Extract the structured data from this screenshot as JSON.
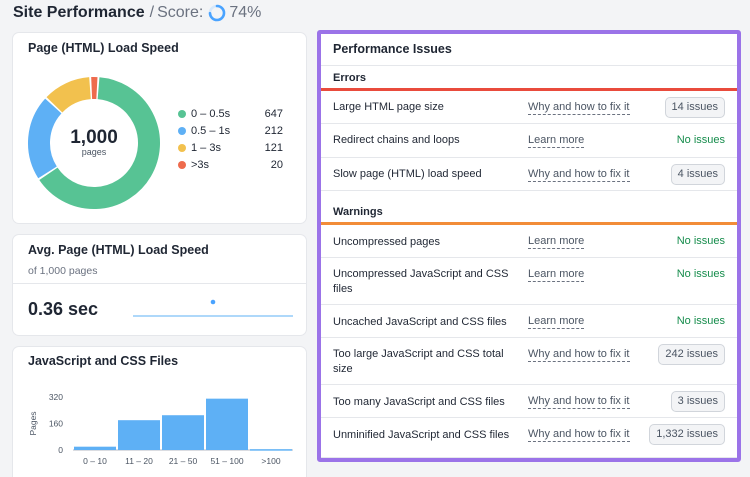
{
  "header": {
    "title": "Site Performance",
    "separator": "/",
    "score_label": "Score:",
    "score_value": "74%",
    "score_fraction": 0.74,
    "score_color": "#4aa3ff"
  },
  "load_speed_card": {
    "title": "Page (HTML) Load Speed",
    "center_value": "1,000",
    "center_label": "pages",
    "legend": [
      {
        "label": "0 – 0.5s",
        "count": "647",
        "value": 647,
        "color": "#57c394"
      },
      {
        "label": "0.5 – 1s",
        "count": "212",
        "value": 212,
        "color": "#5eb0f5"
      },
      {
        "label": "1 – 3s",
        "count": "121",
        "value": 121,
        "color": "#f2c14e"
      },
      {
        "label": ">3s",
        "count": "20",
        "value": 20,
        "color": "#ee6b4d"
      }
    ]
  },
  "avg_speed_card": {
    "title": "Avg. Page (HTML) Load Speed",
    "subtitle": "of 1,000 pages",
    "value": "0.36 sec"
  },
  "js_css_card": {
    "title": "JavaScript and CSS Files",
    "chart_data": {
      "type": "bar",
      "ylabel": "Pages",
      "categories": [
        "0 – 10",
        "11 – 20",
        "21 – 50",
        "51 – 100",
        ">100"
      ],
      "values": [
        20,
        180,
        210,
        310,
        5
      ],
      "yticks": [
        "320",
        "160",
        "0"
      ],
      "ytick_values": [
        320,
        160,
        0
      ],
      "ylim": [
        0,
        320
      ],
      "bar_color": "#5eb0f5"
    }
  },
  "issues_panel": {
    "title": "Performance Issues",
    "errors_label": "Errors",
    "errors_color": "#e94b3c",
    "warnings_label": "Warnings",
    "warnings_color": "#f28c38",
    "errors": [
      {
        "name": "Large HTML page size",
        "link": "Why and how to fix it",
        "status": "14 issues",
        "badge": true
      },
      {
        "name": "Redirect chains and loops",
        "link": "Learn more",
        "status": "No issues",
        "badge": false
      },
      {
        "name": "Slow page (HTML) load speed",
        "link": "Why and how to fix it",
        "status": "4 issues",
        "badge": true
      }
    ],
    "warnings": [
      {
        "name": "Uncompressed pages",
        "link": "Learn more",
        "status": "No issues",
        "badge": false
      },
      {
        "name": "Uncompressed JavaScript and CSS files",
        "link": "Learn more",
        "status": "No issues",
        "badge": false
      },
      {
        "name": "Uncached JavaScript and CSS files",
        "link": "Learn more",
        "status": "No issues",
        "badge": false
      },
      {
        "name": "Too large JavaScript and CSS total size",
        "link": "Why and how to fix it",
        "status": "242 issues",
        "badge": true
      },
      {
        "name": "Too many JavaScript and CSS files",
        "link": "Why and how to fix it",
        "status": "3 issues",
        "badge": true
      },
      {
        "name": "Unminified JavaScript and CSS files",
        "link": "Why and how to fix it",
        "status": "1,332 issues",
        "badge": true
      }
    ]
  }
}
